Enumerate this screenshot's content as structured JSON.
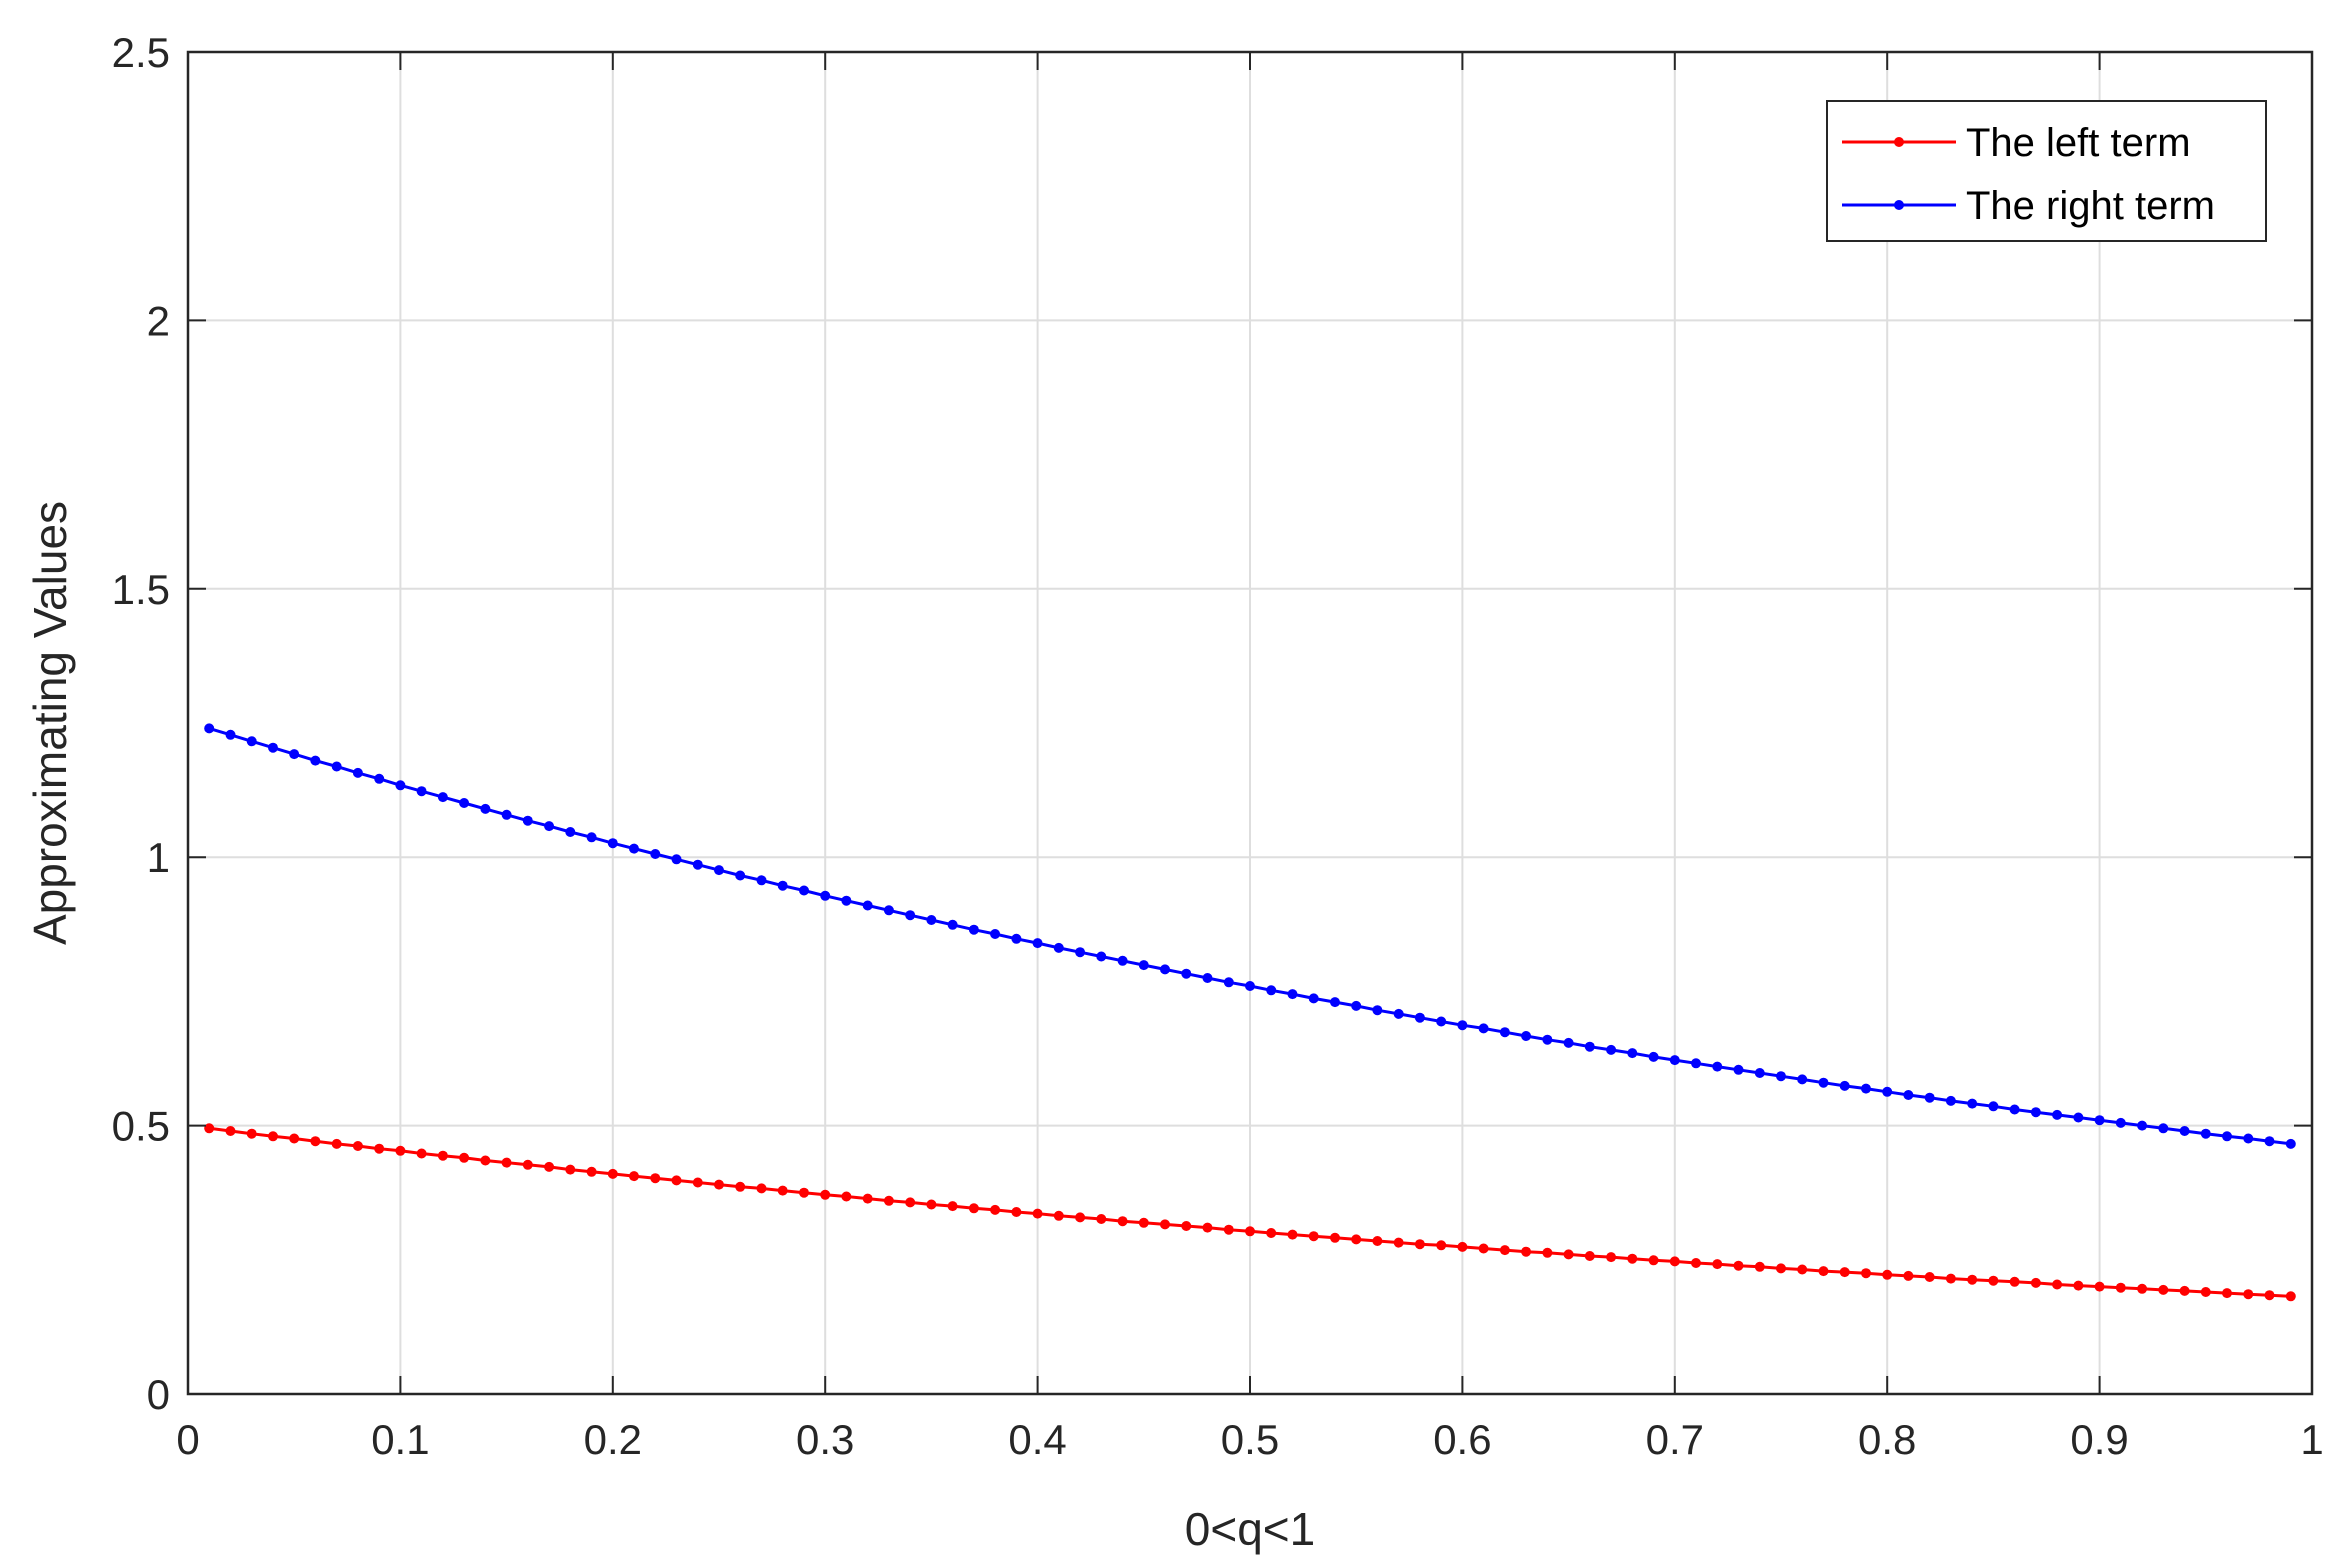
{
  "chart_data": {
    "type": "line",
    "title": "",
    "xlabel": "0<q<1",
    "ylabel": "Approximating Values",
    "xlim": [
      0,
      1
    ],
    "ylim": [
      0,
      2.5
    ],
    "xticks": [
      "0",
      "0.1",
      "0.2",
      "0.3",
      "0.4",
      "0.5",
      "0.6",
      "0.7",
      "0.8",
      "0.9",
      "1"
    ],
    "yticks": [
      "0",
      "0.5",
      "1",
      "1.5",
      "2",
      "2.5"
    ],
    "grid": true,
    "legend_position": "top-right",
    "x": [
      0.01,
      0.02,
      0.03,
      0.04,
      0.05,
      0.06,
      0.07,
      0.08,
      0.09,
      0.1,
      0.11,
      0.12,
      0.13,
      0.14,
      0.15,
      0.16,
      0.17,
      0.18,
      0.19,
      0.2,
      0.21,
      0.22,
      0.23,
      0.24,
      0.25,
      0.26,
      0.27,
      0.28,
      0.29,
      0.3,
      0.31,
      0.32,
      0.33,
      0.34,
      0.35,
      0.36,
      0.37,
      0.38,
      0.39,
      0.4,
      0.41,
      0.42,
      0.43,
      0.44,
      0.45,
      0.46,
      0.47,
      0.48,
      0.49,
      0.5,
      0.51,
      0.52,
      0.53,
      0.54,
      0.55,
      0.56,
      0.57,
      0.58,
      0.59,
      0.6,
      0.61,
      0.62,
      0.63,
      0.64,
      0.65,
      0.66,
      0.67,
      0.68,
      0.69,
      0.7,
      0.71,
      0.72,
      0.73,
      0.74,
      0.75,
      0.76,
      0.77,
      0.78,
      0.79,
      0.8,
      0.81,
      0.82,
      0.83,
      0.84,
      0.85,
      0.86,
      0.87,
      0.88,
      0.89,
      0.9,
      0.91,
      0.92,
      0.93,
      0.94,
      0.95,
      0.96,
      0.97,
      0.98,
      0.99
    ],
    "series": [
      {
        "name": "The left term",
        "color": "#ff0000",
        "values": [
          0.495,
          0.49,
          0.485,
          0.48,
          0.476,
          0.471,
          0.466,
          0.462,
          0.457,
          0.453,
          0.448,
          0.444,
          0.44,
          0.435,
          0.431,
          0.427,
          0.423,
          0.418,
          0.414,
          0.41,
          0.406,
          0.402,
          0.398,
          0.394,
          0.39,
          0.386,
          0.383,
          0.379,
          0.375,
          0.371,
          0.368,
          0.364,
          0.36,
          0.357,
          0.353,
          0.35,
          0.346,
          0.343,
          0.339,
          0.336,
          0.332,
          0.329,
          0.326,
          0.322,
          0.319,
          0.316,
          0.313,
          0.31,
          0.306,
          0.303,
          0.3,
          0.297,
          0.294,
          0.291,
          0.288,
          0.285,
          0.282,
          0.279,
          0.277,
          0.274,
          0.271,
          0.268,
          0.265,
          0.263,
          0.26,
          0.257,
          0.255,
          0.252,
          0.249,
          0.247,
          0.244,
          0.242,
          0.239,
          0.237,
          0.234,
          0.232,
          0.229,
          0.227,
          0.225,
          0.222,
          0.22,
          0.218,
          0.215,
          0.213,
          0.211,
          0.209,
          0.207,
          0.204,
          0.202,
          0.2,
          0.198,
          0.196,
          0.194,
          0.192,
          0.19,
          0.188,
          0.186,
          0.184,
          0.182
        ]
      },
      {
        "name": "The right term",
        "color": "#0000ff",
        "values": [
          1.24,
          1.228,
          1.216,
          1.204,
          1.192,
          1.18,
          1.169,
          1.157,
          1.146,
          1.134,
          1.123,
          1.112,
          1.101,
          1.09,
          1.079,
          1.068,
          1.058,
          1.047,
          1.037,
          1.026,
          1.016,
          1.006,
          0.996,
          0.986,
          0.976,
          0.966,
          0.957,
          0.947,
          0.938,
          0.928,
          0.919,
          0.91,
          0.901,
          0.892,
          0.883,
          0.874,
          0.865,
          0.857,
          0.848,
          0.84,
          0.831,
          0.823,
          0.815,
          0.807,
          0.799,
          0.791,
          0.783,
          0.775,
          0.767,
          0.76,
          0.752,
          0.745,
          0.737,
          0.73,
          0.723,
          0.715,
          0.708,
          0.701,
          0.694,
          0.687,
          0.681,
          0.674,
          0.667,
          0.66,
          0.654,
          0.647,
          0.641,
          0.635,
          0.628,
          0.622,
          0.616,
          0.61,
          0.604,
          0.598,
          0.592,
          0.586,
          0.58,
          0.574,
          0.569,
          0.563,
          0.557,
          0.552,
          0.546,
          0.541,
          0.536,
          0.53,
          0.525,
          0.52,
          0.515,
          0.51,
          0.505,
          0.5,
          0.495,
          0.49,
          0.485,
          0.48,
          0.476,
          0.471,
          0.466
        ]
      }
    ]
  }
}
